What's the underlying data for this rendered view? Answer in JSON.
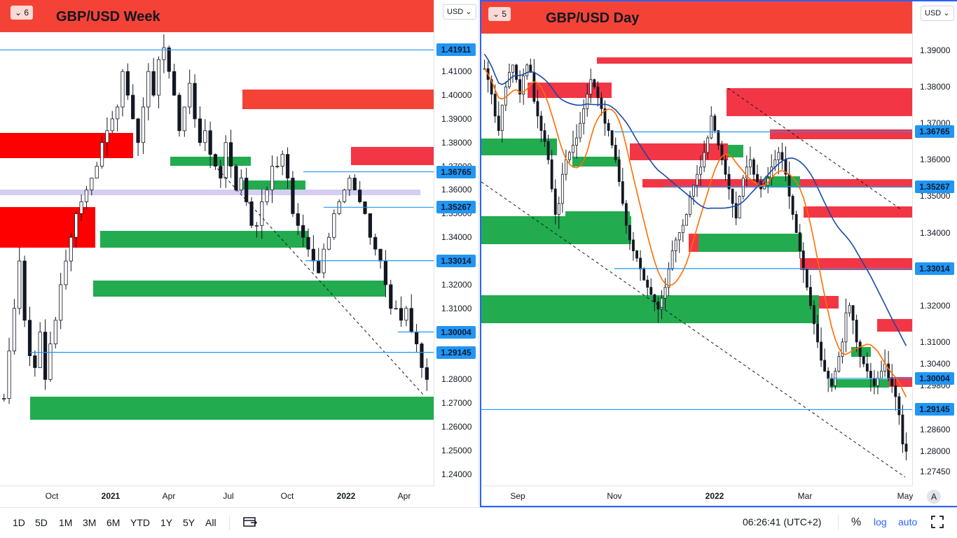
{
  "left_chart": {
    "badge": "6",
    "title": "GBP/USD Week",
    "currency": "USD",
    "price_ticks": [
      "1.41000",
      "1.40000",
      "1.39000",
      "1.38000",
      "1.37000",
      "1.36000",
      "1.35000",
      "1.34000",
      "1.33000",
      "1.32000",
      "1.31000",
      "1.30000",
      "1.29000",
      "1.28000",
      "1.27000",
      "1.26000",
      "1.25000",
      "1.24000"
    ],
    "level_labels": [
      "1.41911",
      "1.36765",
      "1.35267",
      "1.33014",
      "1.30004",
      "1.29145"
    ],
    "time_labels": [
      "Oct",
      "2021",
      "Apr",
      "Jul",
      "Oct",
      "2022",
      "Apr"
    ]
  },
  "right_chart": {
    "badge": "5",
    "title": "GBP/USD Day",
    "currency": "USD",
    "price_ticks": [
      "1.39000",
      "1.38000",
      "1.37000",
      "1.36000",
      "1.35000",
      "1.34000",
      "1.32000",
      "1.31000",
      "1.30400",
      "1.29800",
      "1.28600",
      "1.28000",
      "1.27450"
    ],
    "level_labels": [
      "1.36765",
      "1.35267",
      "1.33014",
      "1.30004",
      "1.29145"
    ],
    "time_labels": [
      "Sep",
      "Nov",
      "2022",
      "Mar",
      "May"
    ],
    "auto_label": "A"
  },
  "bottom_bar": {
    "ranges": [
      "1D",
      "5D",
      "1M",
      "3M",
      "6M",
      "YTD",
      "1Y",
      "5Y",
      "All"
    ],
    "time": "06:26:41 (UTC+2)",
    "percent": "%",
    "log": "log",
    "auto": "auto"
  },
  "chart_data": [
    {
      "type": "candlestick",
      "title": "GBP/USD Week",
      "y_range": [
        1.237,
        1.426
      ],
      "horizontal_levels": [
        1.41911,
        1.36765,
        1.35267,
        1.33014,
        1.30004,
        1.29145
      ],
      "closes": [
        1.272,
        1.292,
        1.31,
        1.33,
        1.305,
        1.29,
        1.285,
        1.3,
        1.28,
        1.295,
        1.305,
        1.32,
        1.33,
        1.34,
        1.35,
        1.355,
        1.36,
        1.365,
        1.37,
        1.38,
        1.385,
        1.39,
        1.395,
        1.41,
        1.4,
        1.39,
        1.38,
        1.395,
        1.41,
        1.4,
        1.415,
        1.42,
        1.41,
        1.4,
        1.385,
        1.395,
        1.405,
        1.39,
        1.38,
        1.385,
        1.375,
        1.37,
        1.365,
        1.38,
        1.37,
        1.36,
        1.365,
        1.355,
        1.345,
        1.345,
        1.355,
        1.36,
        1.37,
        1.37,
        1.375,
        1.365,
        1.35,
        1.345,
        1.34,
        1.335,
        1.33,
        1.325,
        1.335,
        1.34,
        1.35,
        1.355,
        1.36,
        1.365,
        1.36,
        1.355,
        1.35,
        1.34,
        1.335,
        1.33,
        1.32,
        1.31,
        1.31,
        1.305,
        1.31,
        1.3,
        1.295,
        1.285,
        1.28
      ]
    },
    {
      "type": "candlestick",
      "title": "GBP/USD Day",
      "y_range": [
        1.271,
        1.395
      ],
      "horizontal_levels": [
        1.36765,
        1.35267,
        1.33014,
        1.30004,
        1.29145
      ],
      "closes": [
        1.385,
        1.382,
        1.378,
        1.372,
        1.368,
        1.375,
        1.38,
        1.384,
        1.386,
        1.382,
        1.378,
        1.383,
        1.386,
        1.384,
        1.376,
        1.372,
        1.368,
        1.365,
        1.36,
        1.352,
        1.345,
        1.348,
        1.356,
        1.36,
        1.362,
        1.364,
        1.366,
        1.37,
        1.374,
        1.378,
        1.382,
        1.38,
        1.377,
        1.374,
        1.37,
        1.368,
        1.364,
        1.36,
        1.354,
        1.348,
        1.342,
        1.338,
        1.335,
        1.333,
        1.33,
        1.327,
        1.325,
        1.323,
        1.321,
        1.319,
        1.322,
        1.325,
        1.33,
        1.335,
        1.338,
        1.34,
        1.342,
        1.345,
        1.35,
        1.353,
        1.356,
        1.358,
        1.362,
        1.366,
        1.372,
        1.368,
        1.364,
        1.36,
        1.356,
        1.352,
        1.348,
        1.344,
        1.35,
        1.355,
        1.358,
        1.36,
        1.356,
        1.354,
        1.352,
        1.353,
        1.355,
        1.358,
        1.36,
        1.362,
        1.36,
        1.356,
        1.35,
        1.345,
        1.34,
        1.335,
        1.33,
        1.325,
        1.32,
        1.315,
        1.31,
        1.305,
        1.302,
        1.3,
        1.298,
        1.302,
        1.306,
        1.31,
        1.318,
        1.32,
        1.316,
        1.31,
        1.306,
        1.304,
        1.302,
        1.3,
        1.298,
        1.3,
        1.302,
        1.304,
        1.3,
        1.298,
        1.295,
        1.29,
        1.282,
        1.28
      ]
    }
  ]
}
